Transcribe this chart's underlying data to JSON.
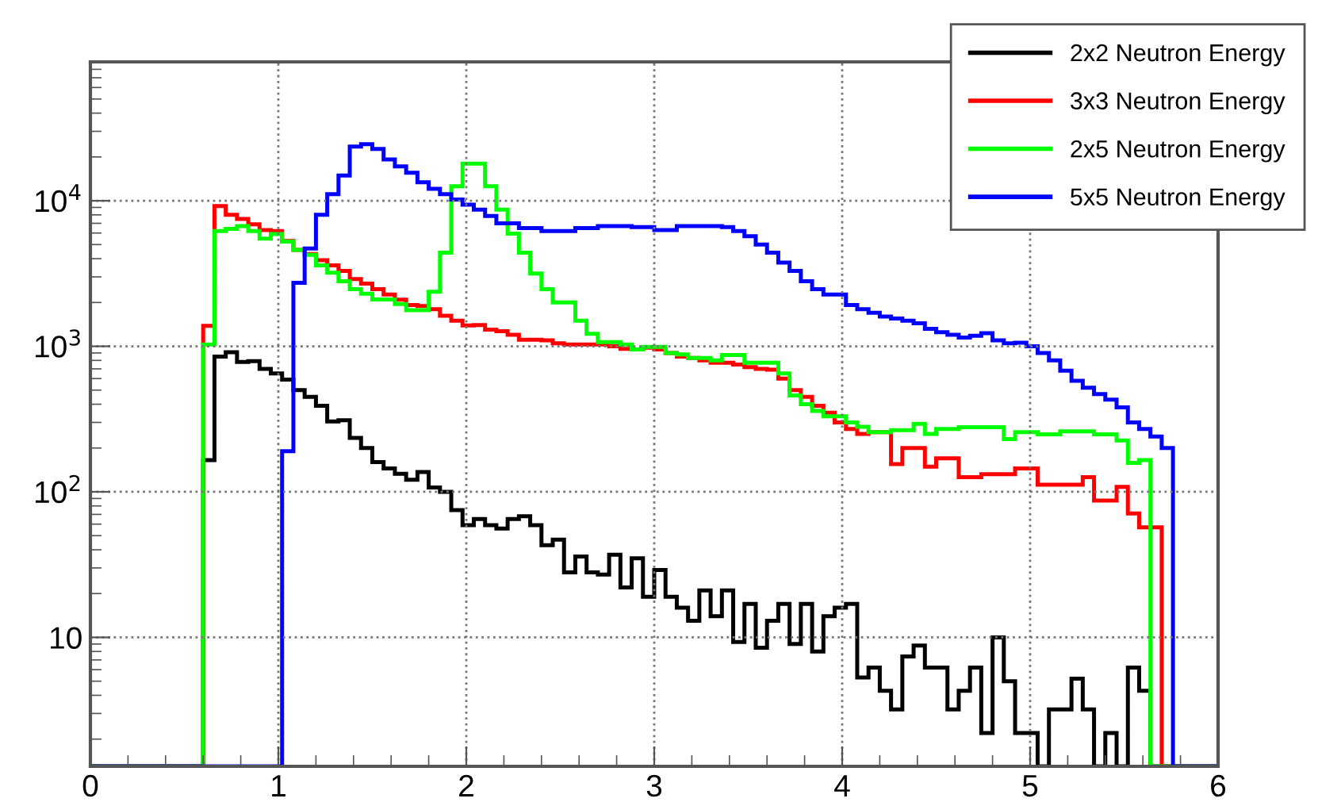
{
  "chart_data": {
    "type": "histogram",
    "bins": [
      0,
      0.06,
      0.12,
      0.18,
      0.24,
      0.3,
      0.36,
      0.42,
      0.48,
      0.54,
      0.6,
      0.66,
      0.72,
      0.78,
      0.84,
      0.9,
      0.96,
      1.02,
      1.08,
      1.14,
      1.2,
      1.26,
      1.32,
      1.38,
      1.44,
      1.5,
      1.56,
      1.62,
      1.68,
      1.74,
      1.8,
      1.86,
      1.92,
      1.98,
      2.04,
      2.1,
      2.16,
      2.22,
      2.28,
      2.34,
      2.4,
      2.46,
      2.52,
      2.58,
      2.64,
      2.7,
      2.76,
      2.82,
      2.88,
      2.94,
      3.0,
      3.06,
      3.12,
      3.18,
      3.24,
      3.3,
      3.36,
      3.42,
      3.48,
      3.54,
      3.6,
      3.66,
      3.72,
      3.78,
      3.84,
      3.9,
      3.96,
      4.02,
      4.08,
      4.14,
      4.2,
      4.26,
      4.32,
      4.38,
      4.44,
      4.5,
      4.56,
      4.62,
      4.68,
      4.74,
      4.8,
      4.86,
      4.92,
      4.98,
      5.04,
      5.1,
      5.16,
      5.22,
      5.28,
      5.34,
      5.4,
      5.46,
      5.52,
      5.58,
      5.64,
      5.7,
      5.76,
      5.82,
      5.88,
      5.94,
      6.0
    ],
    "series": [
      {
        "name": "2x2 Neutron Energy",
        "color": "#000000",
        "values": [
          null,
          null,
          null,
          null,
          null,
          null,
          null,
          null,
          null,
          null,
          165,
          850,
          910,
          780,
          790,
          700,
          650,
          590,
          500,
          450,
          390,
          305,
          310,
          235,
          200,
          160,
          145,
          133,
          121,
          137,
          107,
          100,
          75,
          59,
          65,
          59,
          56,
          65,
          68,
          59,
          43,
          47,
          28,
          36,
          28,
          27,
          37,
          22,
          35,
          19,
          29,
          19,
          16,
          13,
          21,
          14,
          21,
          9.3,
          17,
          8.5,
          13,
          17,
          9,
          17,
          8,
          14,
          16,
          17,
          5.3,
          6.2,
          4.3,
          3.2,
          7.4,
          8.8,
          6.2,
          6.2,
          3.2,
          4.3,
          6.2,
          2.2,
          10,
          5,
          2.2,
          2.2,
          null,
          3.2,
          3.2,
          5.2,
          3.2,
          null,
          2.2,
          null,
          6.2,
          4.3,
          null,
          null,
          null,
          null,
          null,
          null
        ]
      },
      {
        "name": "3x3 Neutron Energy",
        "color": "#ff0000",
        "values": [
          null,
          null,
          null,
          null,
          null,
          null,
          null,
          null,
          null,
          null,
          1380,
          9200,
          8000,
          7500,
          6900,
          6300,
          6200,
          5300,
          4600,
          4300,
          3900,
          3600,
          3300,
          2900,
          2700,
          2470,
          2270,
          2090,
          1920,
          1890,
          1800,
          1620,
          1500,
          1390,
          1400,
          1300,
          1270,
          1200,
          1110,
          1110,
          1100,
          1050,
          1030,
          1030,
          1030,
          1030,
          1000,
          960,
          950,
          980,
          950,
          900,
          850,
          830,
          800,
          770,
          770,
          750,
          720,
          700,
          690,
          600,
          500,
          450,
          390,
          350,
          300,
          270,
          250,
          257,
          257,
          155,
          200,
          200,
          149,
          170,
          170,
          126,
          126,
          132,
          132,
          132,
          145,
          145,
          112,
          112,
          112,
          112,
          126,
          87,
          87,
          108,
          71,
          57,
          57,
          null,
          null,
          null,
          null,
          null
        ]
      },
      {
        "name": "2x5 Neutron Energy",
        "color": "#00ff00",
        "values": [
          null,
          null,
          null,
          null,
          null,
          null,
          null,
          null,
          null,
          null,
          1030,
          6200,
          6400,
          6700,
          6200,
          5500,
          5900,
          5250,
          4600,
          4250,
          3600,
          3200,
          2800,
          2470,
          2300,
          2100,
          2100,
          1950,
          1770,
          1770,
          2370,
          4400,
          12600,
          18000,
          18000,
          12600,
          8700,
          5950,
          4400,
          3160,
          2470,
          2000,
          2000,
          1500,
          1220,
          1070,
          1070,
          1030,
          950,
          990,
          990,
          900,
          880,
          830,
          830,
          800,
          870,
          870,
          770,
          770,
          770,
          650,
          460,
          400,
          360,
          330,
          330,
          300,
          280,
          257,
          257,
          265,
          265,
          293,
          250,
          270,
          270,
          278,
          278,
          278,
          278,
          230,
          257,
          257,
          248,
          248,
          260,
          260,
          260,
          248,
          248,
          225,
          158,
          165,
          null,
          null,
          null,
          null,
          null,
          null
        ]
      },
      {
        "name": "5x5 Neutron Energy",
        "color": "#0000ff",
        "values": [
          null,
          null,
          null,
          null,
          null,
          null,
          null,
          null,
          null,
          null,
          null,
          null,
          null,
          null,
          null,
          null,
          null,
          190,
          2730,
          4700,
          8000,
          11100,
          14900,
          23600,
          24500,
          22700,
          19200,
          17200,
          15600,
          13400,
          12100,
          11100,
          10200,
          9400,
          8700,
          7850,
          7000,
          7000,
          6500,
          6500,
          6200,
          6200,
          6200,
          6500,
          6500,
          6700,
          6700,
          6700,
          6600,
          6600,
          6300,
          6300,
          6700,
          6700,
          6700,
          6700,
          6600,
          6200,
          5700,
          5000,
          4400,
          3760,
          3300,
          2800,
          2470,
          2270,
          2270,
          1920,
          1800,
          1700,
          1600,
          1550,
          1500,
          1440,
          1320,
          1250,
          1200,
          1150,
          1180,
          1230,
          1100,
          1050,
          1060,
          1000,
          900,
          800,
          680,
          580,
          520,
          470,
          430,
          380,
          300,
          270,
          240,
          200,
          null,
          null,
          null,
          null
        ]
      }
    ],
    "log": "y",
    "xlim": [
      0,
      6
    ],
    "xticks": [
      0,
      1,
      2,
      3,
      4,
      5,
      6
    ],
    "ylim": [
      1.3,
      90000
    ],
    "yticks": [
      10,
      {
        "value": 100,
        "label": "10$^{2}$"
      },
      {
        "value": 1000,
        "label": "10$^{3}$"
      },
      {
        "value": 10000,
        "label": "10$^{4}$"
      }
    ],
    "grid": true,
    "legend": "top right",
    "line_style": "solid"
  }
}
